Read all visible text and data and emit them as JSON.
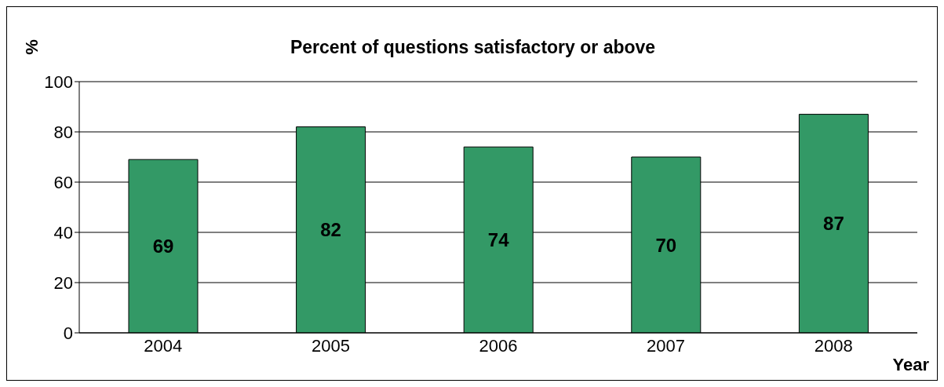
{
  "chart_data": {
    "type": "bar",
    "title": "Percent of questions satisfactory or above",
    "xlabel": "Year",
    "ylabel": "%",
    "categories": [
      "2004",
      "2005",
      "2006",
      "2007",
      "2008"
    ],
    "values": [
      69,
      82,
      74,
      70,
      87
    ],
    "color": "#339966",
    "ylim": [
      0,
      100
    ],
    "yticks": [
      0,
      20,
      40,
      60,
      80,
      100
    ],
    "grid": "y",
    "data_labels": true
  }
}
